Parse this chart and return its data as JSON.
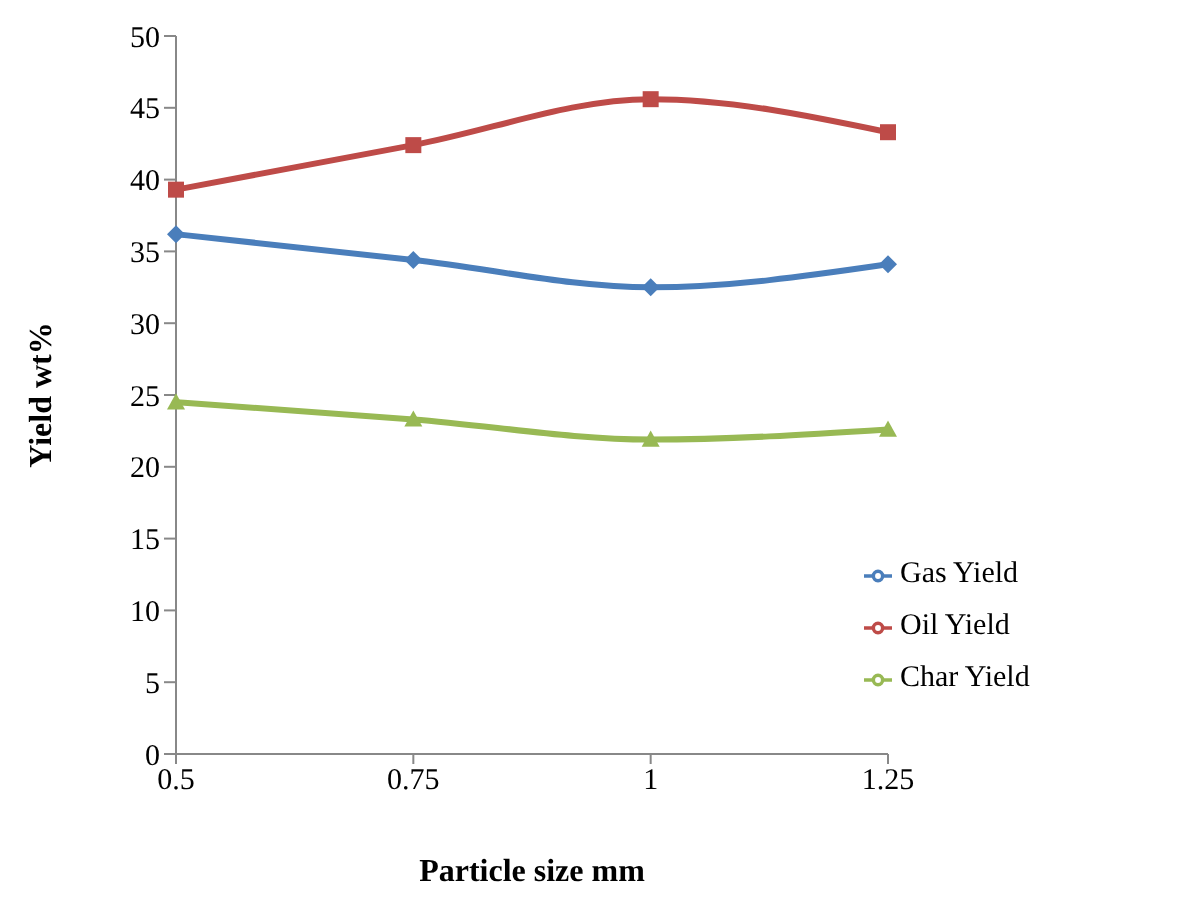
{
  "chart_data": {
    "type": "line",
    "xlabel": "Particle size mm",
    "ylabel": "Yield wt%",
    "categories": [
      "0.5",
      "0.75",
      "1",
      "1.25"
    ],
    "series": [
      {
        "name": "Gas Yield",
        "color": "#4a7ebb",
        "marker": "diamond",
        "values": [
          36.2,
          34.4,
          32.5,
          34.1
        ]
      },
      {
        "name": "Oil Yield",
        "color": "#be4b48",
        "marker": "square",
        "values": [
          39.3,
          42.4,
          45.6,
          43.3
        ]
      },
      {
        "name": "Char Yield",
        "color": "#98b954",
        "marker": "triangle",
        "values": [
          24.5,
          23.3,
          21.9,
          22.6
        ]
      }
    ],
    "ylim": [
      0,
      50
    ],
    "yticks": [
      0,
      5,
      10,
      15,
      20,
      25,
      30,
      35,
      40,
      45,
      50
    ],
    "grid": false,
    "legend": "bottom right",
    "line_style": "solid"
  }
}
